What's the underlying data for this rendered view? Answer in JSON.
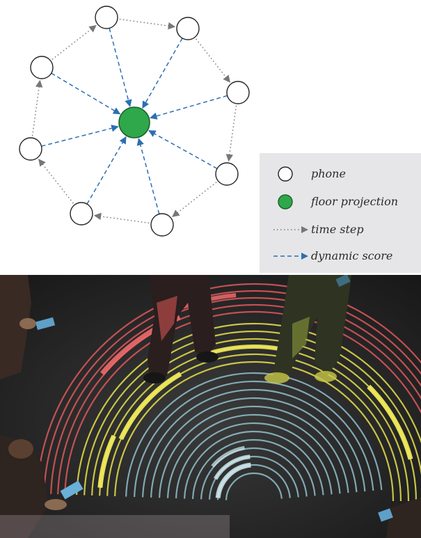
{
  "legend": {
    "phone": "phone",
    "floor_projection": "floor projection",
    "time_step": "time step",
    "dynamic_score": "dynamic score"
  },
  "colors": {
    "node_fill": "#ffffff",
    "node_stroke": "#222222",
    "center_fill": "#2ea84a",
    "center_stroke": "#1b5e2a",
    "dashed_arrow": "#2c6fb3",
    "dotted_arrow": "#777777",
    "legend_bg": "#e6e6e8",
    "floor_dark": "#1e1e1e",
    "ring_blue": "#9fd3e0",
    "ring_yellow": "#e6e04a",
    "ring_red": "#e0585a"
  },
  "icons": [
    "phone-node-icon",
    "floor-projection-icon",
    "time-step-arrow-icon",
    "dynamic-score-arrow-icon"
  ]
}
